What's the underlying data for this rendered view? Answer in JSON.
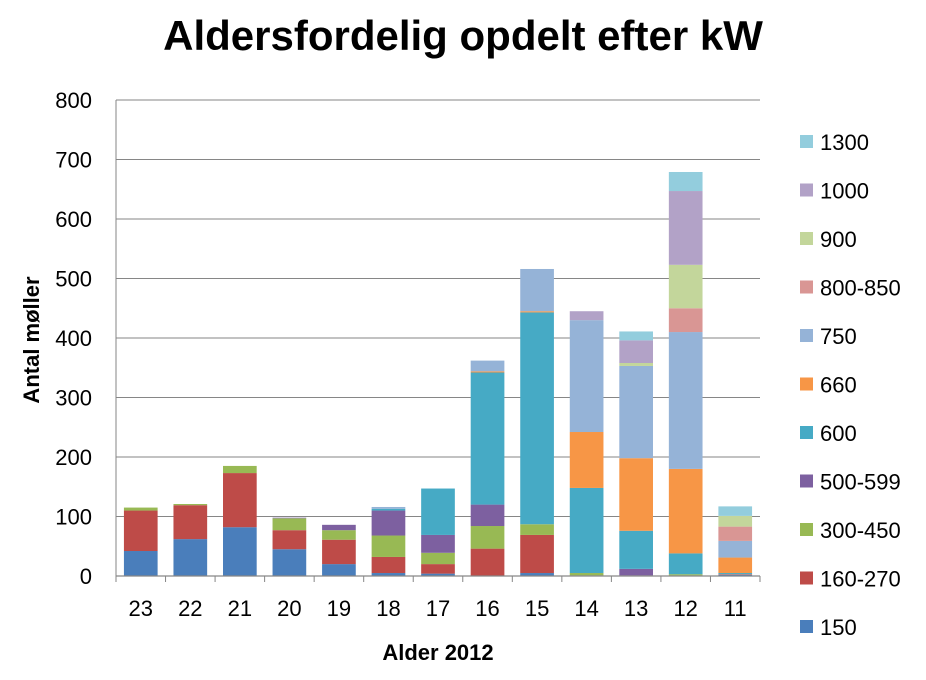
{
  "chart_data": {
    "type": "bar",
    "stacked": true,
    "title": "Aldersfordelig opdelt efter kW",
    "xlabel": "Alder 2012",
    "ylabel": "Antal møller",
    "ylim": [
      0,
      800
    ],
    "yticks": [
      0,
      100,
      200,
      300,
      400,
      500,
      600,
      700,
      800
    ],
    "grid": true,
    "legend_position": "right",
    "categories": [
      "23",
      "22",
      "21",
      "20",
      "19",
      "18",
      "17",
      "16",
      "15",
      "14",
      "13",
      "12",
      "11"
    ],
    "series": [
      {
        "name": "150",
        "color": "#4A7EBB",
        "values": [
          42,
          62,
          82,
          45,
          20,
          5,
          4,
          0,
          5,
          0,
          0,
          0,
          2
        ]
      },
      {
        "name": "160-270",
        "color": "#BE4B48",
        "values": [
          68,
          57,
          91,
          32,
          41,
          27,
          16,
          46,
          64,
          1,
          1,
          1,
          1
        ]
      },
      {
        "name": "300-450",
        "color": "#98B954",
        "values": [
          5,
          2,
          12,
          20,
          16,
          36,
          19,
          38,
          18,
          4,
          0,
          2,
          0
        ]
      },
      {
        "name": "500-599",
        "color": "#7D60A0",
        "values": [
          0,
          0,
          0,
          1,
          9,
          42,
          30,
          36,
          0,
          0,
          11,
          0,
          0
        ]
      },
      {
        "name": "600",
        "color": "#46AAC5",
        "values": [
          0,
          0,
          0,
          0,
          0,
          3,
          78,
          222,
          356,
          143,
          64,
          35,
          2
        ]
      },
      {
        "name": "660",
        "color": "#F79646",
        "values": [
          0,
          0,
          0,
          0,
          0,
          0,
          0,
          2,
          2,
          94,
          122,
          142,
          26
        ]
      },
      {
        "name": "750",
        "color": "#95B3D7",
        "values": [
          0,
          0,
          0,
          0,
          0,
          3,
          0,
          18,
          71,
          188,
          155,
          230,
          28
        ]
      },
      {
        "name": "800-850",
        "color": "#D99694",
        "values": [
          0,
          0,
          0,
          0,
          0,
          0,
          0,
          0,
          0,
          0,
          0,
          40,
          24
        ]
      },
      {
        "name": "900",
        "color": "#C3D69B",
        "values": [
          0,
          0,
          0,
          0,
          0,
          0,
          0,
          0,
          0,
          0,
          5,
          73,
          18
        ]
      },
      {
        "name": "1000",
        "color": "#B2A2C7",
        "values": [
          0,
          0,
          0,
          0,
          0,
          0,
          0,
          0,
          0,
          15,
          38,
          124,
          0
        ]
      },
      {
        "name": "1300",
        "color": "#93CDDD",
        "values": [
          0,
          0,
          0,
          0,
          0,
          0,
          0,
          0,
          0,
          0,
          15,
          32,
          16
        ]
      }
    ]
  }
}
